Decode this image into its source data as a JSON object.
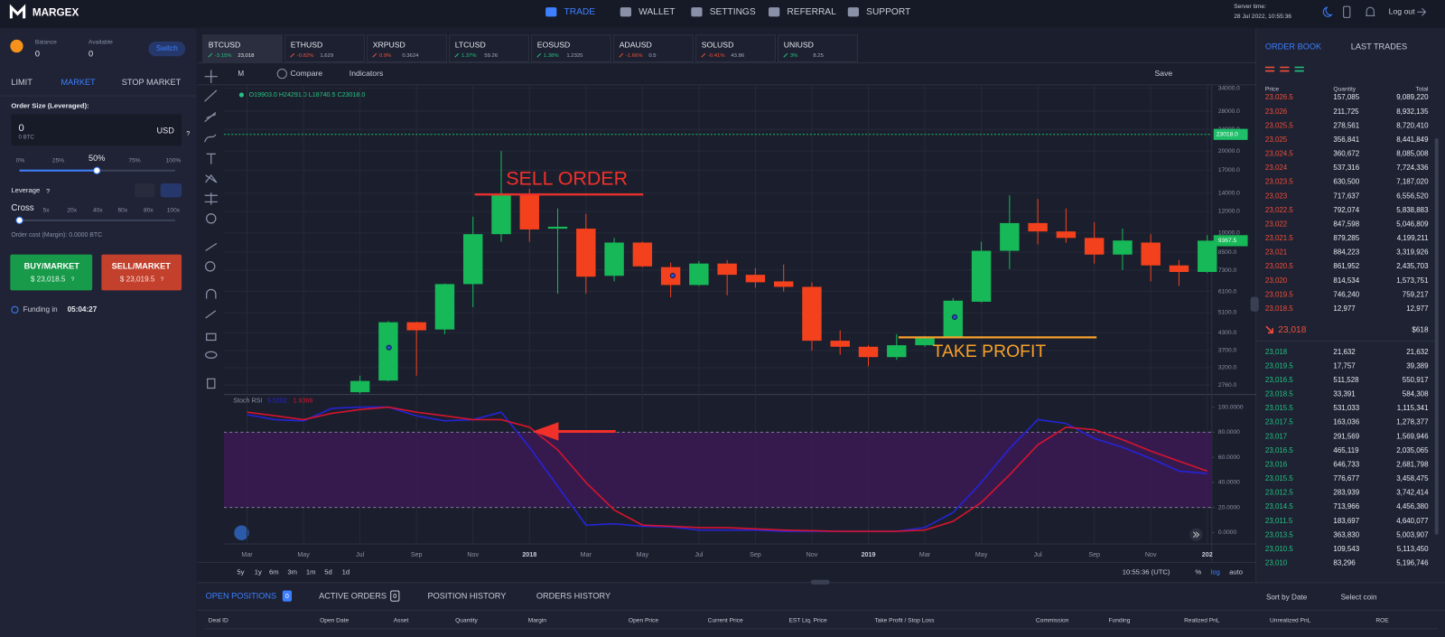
{
  "header": {
    "logo": "MARGEX",
    "nav": [
      "TRADE",
      "WALLET",
      "SETTINGS",
      "REFERRAL",
      "SUPPORT"
    ],
    "server_time_label": "Server time:",
    "server_time": "28 Jul 2022, 10:55:36",
    "logout": "Log out"
  },
  "order_panel": {
    "balance_label": "Balance",
    "balance": "0",
    "available_label": "Available",
    "available": "0",
    "switch": "Switch",
    "tabs": [
      "LIMIT",
      "MARKET",
      "STOP MARKET"
    ],
    "order_size_label": "Order Size (Leveraged):",
    "order_size": "0",
    "order_size_btc": "0 BTC",
    "currency": "USD",
    "help": "?",
    "size_steps": [
      "0%",
      "25%",
      "50%",
      "75%",
      "100%"
    ],
    "leverage_label": "Leverage",
    "cross": "Cross",
    "leverage_steps": [
      "5x",
      "20x",
      "40x",
      "60x",
      "80x",
      "100x"
    ],
    "order_cost": "Order cost (Margin): 0.0000 BTC",
    "buy_label": "BUY/MARKET",
    "buy_price": "$ 23,018.5",
    "sell_label": "SELL/MARKET",
    "sell_price": "$ 23,019.5",
    "funding_label": "Funding in",
    "funding_time": "05:04:27"
  },
  "tickers": [
    {
      "symbol": "BTCUSD",
      "change": "-3.15%",
      "price": "23,018",
      "color": "#26c281"
    },
    {
      "symbol": "ETHUSD",
      "change": "-0.82%",
      "price": "1,629",
      "color": "#f0503a"
    },
    {
      "symbol": "XRPUSD",
      "change": "0.9%",
      "price": "0.3624",
      "color": "#f0503a"
    },
    {
      "symbol": "LTCUSD",
      "change": "1.37%",
      "price": "59.26",
      "color": "#26c281"
    },
    {
      "symbol": "EOSUSD",
      "change": "1.38%",
      "price": "1.2325",
      "color": "#26c281"
    },
    {
      "symbol": "ADAUSD",
      "change": "-1.66%",
      "price": "0.5",
      "color": "#f0503a"
    },
    {
      "symbol": "SOLUSD",
      "change": "-0.41%",
      "price": "43.86",
      "color": "#f0503a"
    },
    {
      "symbol": "UNIUSD",
      "change": "3%",
      "price": "8.25",
      "color": "#26c281"
    }
  ],
  "toolbar": {
    "interval": "M",
    "compare": "Compare",
    "indicators": "Indicators",
    "save": "Save"
  },
  "chart_data": [
    {
      "type": "candlestick",
      "ohlc_legend": "O19903.0 H24291.0 L18740.5 C23018.0",
      "categories": [
        "Mar",
        null,
        "May",
        null,
        "Jul",
        null,
        "Sep",
        null,
        "Nov",
        null,
        "2018",
        null,
        "Mar",
        null,
        "May",
        null,
        "Jul",
        null,
        "Sep",
        null,
        "Nov",
        null,
        "2019",
        null,
        "Mar",
        null,
        "May",
        null,
        "Jul",
        null,
        "Sep",
        null,
        "Nov",
        null,
        "202"
      ],
      "open": [
        null,
        null,
        null,
        null,
        2600,
        2870,
        4700,
        4420,
        6490,
        9900,
        13850,
        10370,
        10370,
        6960,
        9220,
        7490,
        6440,
        7720,
        7020,
        6640,
        6340,
        4020,
        3820,
        3500,
        3870,
        4120,
        5590,
        8600,
        10870,
        10130,
        9590,
        8330,
        9220,
        7600,
        7190
      ],
      "high": [
        null,
        null,
        null,
        null,
        2990,
        4750,
        4720,
        6520,
        11480,
        20000,
        14500,
        12300,
        11750,
        9590,
        9290,
        7780,
        7890,
        7950,
        7430,
        7660,
        6590,
        4390,
        3870,
        4250,
        4190,
        5770,
        9290,
        13750,
        13330,
        12300,
        10950,
        10370,
        9900,
        7950,
        9820
      ],
      "low": [
        null,
        null,
        null,
        null,
        2560,
        2850,
        2990,
        4250,
        5340,
        9290,
        9290,
        5990,
        5990,
        6640,
        7490,
        5810,
        6390,
        5900,
        6290,
        6090,
        3700,
        3570,
        3240,
        3420,
        3820,
        4120,
        5550,
        7370,
        9080,
        9220,
        7720,
        7310,
        6640,
        6390,
        7130
      ],
      "close": [
        null,
        null,
        null,
        null,
        2860,
        4700,
        4390,
        6490,
        9900,
        13850,
        10300,
        10540,
        6910,
        9220,
        7540,
        6440,
        7720,
        7020,
        6590,
        6340,
        4020,
        3820,
        3500,
        3870,
        4120,
        5640,
        8600,
        10870,
        10130,
        9590,
        8330,
        9380,
        7600,
        7190,
        9367.5
      ],
      "up_color": "#17b858",
      "down_color": "#f3411d",
      "ylim": [
        2550,
        35000
      ],
      "log_scale": true,
      "grid": true,
      "yticks": [
        {
          "value": 34000,
          "label": "34000.0"
        },
        {
          "value": 28000,
          "label": "28000.0"
        },
        {
          "value": 24000,
          "label": "24000.0"
        },
        {
          "value": 20000,
          "label": "20000.0"
        },
        {
          "value": 17000,
          "label": "17000.0"
        },
        {
          "value": 14000,
          "label": "14000.0"
        },
        {
          "value": 12000,
          "label": "12000.0"
        },
        {
          "value": 10000,
          "label": "10000.0"
        },
        {
          "value": 8500,
          "label": "8500.0"
        },
        {
          "value": 7300,
          "label": "7300.0"
        },
        {
          "value": 6100,
          "label": "6100.0"
        },
        {
          "value": 5100,
          "label": "5100.0"
        },
        {
          "value": 4300,
          "label": "4300.0"
        },
        {
          "value": 3700,
          "label": "3700.0"
        },
        {
          "value": 3200,
          "label": "3200.0"
        },
        {
          "value": 2760,
          "label": "2760.0"
        }
      ],
      "price_line": {
        "value": 23018,
        "label": "23018.0",
        "color": "#1fbf6a"
      },
      "annotations": [
        {
          "text": "SELL ORDER",
          "color": "#f2302a"
        },
        {
          "text": "TAKE PROFIT",
          "color": "#f7a12a"
        }
      ]
    },
    {
      "type": "line",
      "title": "Stoch RSI",
      "readout": [
        "5.5202",
        "1.9366"
      ],
      "series": [
        {
          "color": "#2424d6",
          "values": [
            94,
            90,
            89,
            99,
            100,
            100,
            93,
            89,
            90,
            96,
            68,
            37,
            6,
            7,
            5,
            4.5,
            2,
            2,
            2,
            1,
            1,
            1,
            1,
            1,
            4,
            16,
            40,
            67,
            90,
            87,
            75,
            68,
            59,
            49,
            47
          ]
        },
        {
          "color": "#d4142e",
          "values": [
            96,
            93,
            90,
            95,
            98,
            100,
            96,
            93,
            90,
            90,
            84,
            66,
            40,
            18,
            6,
            5,
            4,
            4,
            3,
            2,
            1.5,
            1,
            1,
            1,
            2,
            9,
            24,
            46,
            70,
            84,
            82,
            74,
            65,
            57,
            49
          ]
        }
      ],
      "ylim": [
        -9,
        110
      ],
      "band": [
        20,
        80
      ],
      "band_color": "#3b1a55",
      "yticks": [
        {
          "value": 100,
          "label": "100.0000"
        },
        {
          "value": 80,
          "label": "80.0000"
        },
        {
          "value": 60,
          "label": "60.0000"
        },
        {
          "value": 40,
          "label": "40.0000"
        },
        {
          "value": 20,
          "label": "20.0000"
        },
        {
          "value": 0,
          "label": "0.0000"
        }
      ]
    }
  ],
  "range_buttons": [
    "5y",
    "1y",
    "6m",
    "3m",
    "1m",
    "5d",
    "1d"
  ],
  "time_utc": "10:55:36 (UTC)",
  "scale_options": [
    "%",
    "log",
    "auto"
  ],
  "bottom": {
    "tabs": [
      {
        "label": "OPEN POSITIONS",
        "count": "0"
      },
      {
        "label": "ACTIVE ORDERS",
        "count": "0"
      },
      {
        "label": "POSITION HISTORY"
      },
      {
        "label": "ORDERS HISTORY"
      }
    ],
    "sort": "Sort by Date",
    "select_coin": "Select coin",
    "columns": [
      "Deal ID",
      "Open Date",
      "Asset",
      "Quantity",
      "Margin",
      "Open Price",
      "Current Price",
      "EST Liq. Price",
      "Take Profit / Stop Loss",
      "Commission",
      "Funding",
      "Realized PnL",
      "Unrealized PnL",
      "ROE"
    ]
  },
  "order_book": {
    "tabs": [
      "ORDER BOOK",
      "LAST TRADES"
    ],
    "columns": [
      "Price",
      "Quantity",
      "Total"
    ],
    "asks": [
      [
        "23,026.5",
        "157,085",
        "9,089,220"
      ],
      [
        "23,026",
        "211,725",
        "8,932,135"
      ],
      [
        "23,025.5",
        "278,561",
        "8,720,410"
      ],
      [
        "23,025",
        "356,841",
        "8,441,849"
      ],
      [
        "23,024.5",
        "360,672",
        "8,085,008"
      ],
      [
        "23,024",
        "537,316",
        "7,724,336"
      ],
      [
        "23,023.5",
        "630,500",
        "7,187,020"
      ],
      [
        "23,023",
        "717,637",
        "6,556,520"
      ],
      [
        "23,022.5",
        "792,074",
        "5,838,883"
      ],
      [
        "23,022",
        "847,598",
        "5,046,809"
      ],
      [
        "23,021.5",
        "879,285",
        "4,199,211"
      ],
      [
        "23,021",
        "884,223",
        "3,319,926"
      ],
      [
        "23,020.5",
        "861,952",
        "2,435,703"
      ],
      [
        "23,020",
        "814,534",
        "1,573,751"
      ],
      [
        "23,019.5",
        "746,240",
        "759,217"
      ],
      [
        "23,018.5",
        "12,977",
        "12,977"
      ]
    ],
    "mid_price": "23,018",
    "mid_value": "$618",
    "bids": [
      [
        "23,018",
        "21,632",
        "21,632"
      ],
      [
        "23,019.5",
        "17,757",
        "39,389"
      ],
      [
        "23,016.5",
        "511,528",
        "550,917"
      ],
      [
        "23,018.5",
        "33,391",
        "584,308"
      ],
      [
        "23,015.5",
        "531,033",
        "1,115,341"
      ],
      [
        "23,017.5",
        "163,036",
        "1,278,377"
      ],
      [
        "23,017",
        "291,569",
        "1,569,946"
      ],
      [
        "23,016.5",
        "465,119",
        "2,035,065"
      ],
      [
        "23,016",
        "646,733",
        "2,681,798"
      ],
      [
        "23,015.5",
        "776,677",
        "3,458,475"
      ],
      [
        "23,012.5",
        "283,939",
        "3,742,414"
      ],
      [
        "23,014.5",
        "713,966",
        "4,456,380"
      ],
      [
        "23,011.5",
        "183,697",
        "4,640,077"
      ],
      [
        "23,013.5",
        "363,830",
        "5,003,907"
      ],
      [
        "23,010.5",
        "109,543",
        "5,113,450"
      ],
      [
        "23,010",
        "83,296",
        "5,196,746"
      ]
    ]
  }
}
